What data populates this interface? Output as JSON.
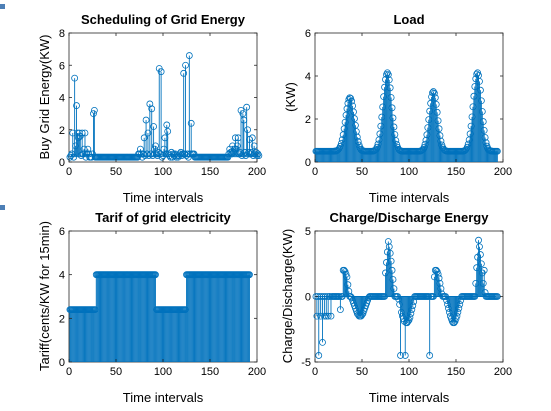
{
  "colors": {
    "series": "#0072BD",
    "axes": "#262626",
    "background": "#ffffff"
  },
  "chart_data": [
    {
      "id": "grid",
      "type": "stem",
      "title": "Scheduling of Grid Energy",
      "xlabel": "Time intervals",
      "ylabel": "Buy Grid Energy(KW)",
      "xlim": [
        0,
        200
      ],
      "ylim": [
        0,
        8
      ],
      "xticks": [
        0,
        50,
        100,
        150,
        200
      ],
      "yticks": [
        0,
        2,
        4,
        6,
        8
      ],
      "grid": false,
      "baseline": 0.3,
      "series": [
        {
          "values": [
            0.3,
            0.4,
            0.5,
            1.8,
            0.3,
            5.2,
            1.0,
            3.5,
            1.8,
            1.5,
            1.8,
            1.6,
            0.4,
            1.8,
            0.5,
            0.8,
            1.8,
            0.3,
            0.5,
            0.8,
            0.5,
            0.3,
            0.3,
            0.3,
            0.5,
            3.0,
            3.2,
            0.3,
            0.3,
            0.3,
            0.3,
            0.3,
            0.3,
            0.3,
            0.3,
            0.3,
            0.3,
            0.3,
            0.3,
            0.3,
            0.3,
            0.3,
            0.3,
            0.3,
            0.3,
            0.3,
            0.3,
            0.3,
            0.3,
            0.3,
            0.3,
            0.3,
            0.3,
            0.3,
            0.3,
            0.3,
            0.3,
            0.3,
            0.3,
            0.3,
            0.3,
            0.3,
            0.3,
            0.3,
            0.3,
            0.3,
            0.3,
            0.3,
            0.3,
            0.3,
            0.3,
            0.3,
            0.3,
            0.5,
            0.5,
            0.8,
            0.5,
            0.3,
            0.5,
            1.5,
            0.4,
            2.6,
            0.5,
            1.8,
            0.4,
            3.6,
            0.5,
            3.3,
            0.4,
            2.2,
            0.8,
            1.0,
            0.5,
            0.4,
            0.6,
            5.8,
            0.5,
            5.6,
            0.3,
            0.4,
            0.8,
            1.5,
            0.5,
            2.3,
            1.9,
            0.5,
            0.4,
            0.3,
            0.6,
            0.3,
            0.5,
            0.4,
            0.5,
            0.3,
            0.4,
            0.3,
            0.4,
            0.5,
            0.6,
            0.4,
            0.5,
            5.5,
            0.5,
            6.0,
            0.4,
            0.5,
            0.3,
            6.6,
            0.5,
            2.4,
            0.5,
            0.5,
            0.5,
            0.3,
            0.3,
            0.3,
            0.3,
            0.3,
            0.3,
            0.3,
            0.3,
            0.3,
            0.3,
            0.3,
            0.3,
            0.3,
            0.3,
            0.3,
            0.3,
            0.3,
            0.3,
            0.3,
            0.3,
            0.3,
            0.3,
            0.3,
            0.3,
            0.3,
            0.3,
            0.3,
            0.3,
            0.3,
            0.3,
            0.3,
            0.3,
            0.3,
            0.3,
            0.3,
            0.3,
            0.5,
            0.8,
            0.6,
            0.5,
            1.0,
            0.6,
            0.8,
            1.5,
            0.8,
            1.0,
            1.5,
            0.5,
            0.6,
            3.2,
            0.4,
            3.0,
            2.6,
            0.6,
            0.4,
            3.4,
            2.0,
            0.6,
            1.4,
            0.5,
            0.6,
            1.5,
            0.4,
            1.0,
            0.5,
            0.6,
            0.4,
            0.5,
            0.4
          ]
        }
      ]
    },
    {
      "id": "load",
      "type": "stem",
      "title": "Load",
      "xlabel": "Time intervals",
      "ylabel": "(KW)",
      "xlim": [
        0,
        200
      ],
      "ylim": [
        0,
        6
      ],
      "xticks": [
        0,
        50,
        100,
        150,
        200
      ],
      "yticks": [
        0,
        2,
        4,
        6
      ],
      "grid": false,
      "baseline": 0,
      "series": [
        {
          "values": [
            0.5,
            0.5,
            0.5,
            0.5,
            0.5,
            0.5,
            0.5,
            0.5,
            0.5,
            0.5,
            0.5,
            0.5,
            0.5,
            0.5,
            0.5,
            0.5,
            0.5,
            0.5,
            0.5,
            0.5,
            0.51,
            0.51,
            0.52,
            0.55,
            0.58,
            0.64,
            0.73,
            0.86,
            1.04,
            1.27,
            1.55,
            1.85,
            2.18,
            2.48,
            2.73,
            2.91,
            2.99,
            2.96,
            2.83,
            2.61,
            2.33,
            2.02,
            1.71,
            1.42,
            1.16,
            0.95,
            0.79,
            0.67,
            0.59,
            0.54,
            0.52,
            0.51,
            0.5,
            0.5,
            0.5,
            0.5,
            0.5,
            0.5,
            0.5,
            0.5,
            0.5,
            0.51,
            0.52,
            0.55,
            0.6,
            0.69,
            0.83,
            1.03,
            1.31,
            1.67,
            2.09,
            2.56,
            3.04,
            3.48,
            3.84,
            4.07,
            4.15,
            4.06,
            3.82,
            3.45,
            3.0,
            2.52,
            2.05,
            1.63,
            1.28,
            1.0,
            0.81,
            0.68,
            0.59,
            0.54,
            0.52,
            0.51,
            0.5,
            0.5,
            0.5,
            0.5,
            0.5,
            0.5,
            0.5,
            0.5,
            0.5,
            0.5,
            0.5,
            0.5,
            0.5,
            0.5,
            0.5,
            0.5,
            0.5,
            0.5,
            0.5,
            0.51,
            0.52,
            0.55,
            0.6,
            0.68,
            0.82,
            1.01,
            1.27,
            1.6,
            1.97,
            2.37,
            2.73,
            3.03,
            3.22,
            3.28,
            3.2,
            2.99,
            2.68,
            2.31,
            1.92,
            1.55,
            1.23,
            0.97,
            0.79,
            0.67,
            0.59,
            0.54,
            0.52,
            0.51,
            0.5,
            0.5,
            0.5,
            0.5,
            0.5,
            0.5,
            0.5,
            0.5,
            0.5,
            0.5,
            0.5,
            0.5,
            0.5,
            0.5,
            0.5,
            0.5,
            0.5,
            0.51,
            0.52,
            0.55,
            0.6,
            0.69,
            0.83,
            1.03,
            1.31,
            1.67,
            2.1,
            2.57,
            3.06,
            3.51,
            3.87,
            4.09,
            4.15,
            4.03,
            3.75,
            3.34,
            2.85,
            2.35,
            1.88,
            1.47,
            1.14,
            0.9,
            0.74,
            0.63,
            0.56,
            0.53,
            0.51,
            0.51,
            0.5,
            0.5,
            0.5,
            0.5,
            0.5,
            0.5
          ]
        }
      ]
    },
    {
      "id": "tariff",
      "type": "stem",
      "title": "Tarif of grid electricity",
      "xlabel": "Time intervals",
      "ylabel": "Tariff(cents/KW for 15min)",
      "xlim": [
        0,
        200
      ],
      "ylim": [
        0,
        6
      ],
      "xticks": [
        0,
        50,
        100,
        150,
        200
      ],
      "yticks": [
        0,
        2,
        4,
        6
      ],
      "grid": false,
      "baseline": 0,
      "segments": [
        {
          "from": 1,
          "to": 28,
          "value": 2.4
        },
        {
          "from": 29,
          "to": 92,
          "value": 4.0
        },
        {
          "from": 93,
          "to": 124,
          "value": 2.4
        },
        {
          "from": 125,
          "to": 192,
          "value": 4.0
        }
      ]
    },
    {
      "id": "battery",
      "type": "stem",
      "title": "Charge/Discharge Energy",
      "xlabel": "Time intervals",
      "ylabel": "Charge/Discharge(KW)",
      "xlim": [
        0,
        200
      ],
      "ylim": [
        -5,
        5
      ],
      "xticks": [
        0,
        50,
        100,
        150,
        200
      ],
      "yticks": [
        -5,
        0,
        5
      ],
      "grid": false,
      "baseline": 0,
      "series": [
        {
          "values": [
            0,
            -1.5,
            0,
            -4.5,
            0,
            -1.5,
            0,
            -3.5,
            0,
            -1.5,
            0,
            -1.5,
            0,
            -1.5,
            0,
            0,
            -1.5,
            0,
            0,
            0,
            0,
            0,
            0,
            0,
            0,
            0,
            -1.0,
            0,
            0,
            2.0,
            2.0,
            1.9,
            1.7,
            1.5,
            0.9,
            0.4,
            0,
            0,
            -0.1,
            -0.3,
            -0.5,
            -0.7,
            -0.9,
            -1.1,
            -1.3,
            -1.4,
            -1.5,
            -1.5,
            -1.5,
            -1.4,
            -1.3,
            -1.1,
            -0.9,
            -0.7,
            -0.5,
            -0.3,
            -0.1,
            0,
            0,
            0,
            0,
            0,
            0,
            0,
            0,
            0,
            0,
            0,
            0,
            0,
            0,
            0,
            0,
            0,
            1.8,
            2.6,
            3.4,
            4.2,
            3.8,
            3.3,
            2.7,
            2.0,
            1.3,
            0.6,
            0,
            0,
            0,
            0,
            -0.2,
            -0.6,
            -4.5,
            -1.2,
            -1.5,
            -1.7,
            -1.9,
            -4.5,
            -2.0,
            -2.0,
            -1.9,
            -1.8,
            -1.6,
            -1.3,
            -1.0,
            -0.7,
            -0.4,
            0,
            0,
            0,
            0,
            0,
            0,
            0,
            0,
            0,
            0,
            0,
            0,
            0,
            0,
            0,
            0,
            -4.5,
            0,
            0,
            0,
            0,
            1.5,
            2.0,
            2.0,
            1.9,
            1.7,
            1.4,
            1.0,
            0.6,
            0.2,
            0,
            0,
            0,
            0,
            -0.3,
            -0.6,
            -0.9,
            -1.2,
            -1.5,
            -1.7,
            -1.9,
            -2.0,
            -2.0,
            -1.9,
            -1.7,
            -1.5,
            -1.2,
            -0.9,
            -0.6,
            -0.3,
            0,
            0,
            0,
            0,
            0,
            0,
            0,
            0,
            0,
            0,
            0,
            0,
            0,
            0,
            0,
            1.0,
            2.2,
            3.0,
            4.3,
            3.8,
            3.2,
            2.5,
            1.8,
            1.0,
            2.0,
            0.3,
            0,
            0,
            0,
            0,
            0,
            0,
            0,
            0,
            0,
            0,
            0,
            0,
            0
          ]
        }
      ]
    }
  ]
}
